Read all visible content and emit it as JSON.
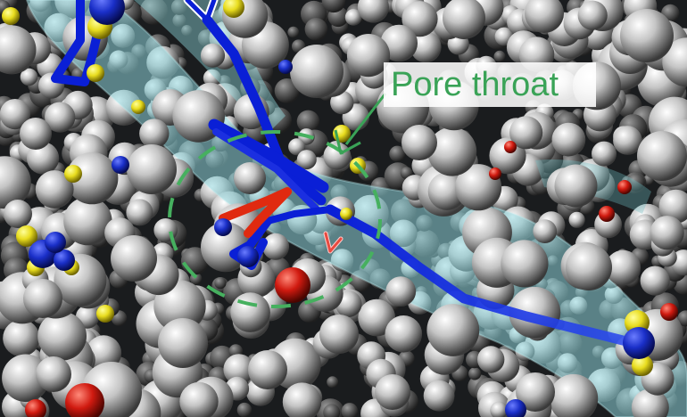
{
  "annotation": {
    "label": "Pore throat",
    "label_color": "#3aa357",
    "arrow_color": "#3aa357",
    "circle_color": "#46b05f"
  },
  "scene": {
    "background_color": "#1a1c1e",
    "sphere_base_color": "#bdbdbd",
    "pore_channel_color": "#8fd6dc",
    "path_color": "#0a1fd6",
    "highlight_path_color": "#e02a10",
    "accent_sphere_colors": [
      "#f0e620",
      "#1a2fc8",
      "#d01a10"
    ]
  }
}
